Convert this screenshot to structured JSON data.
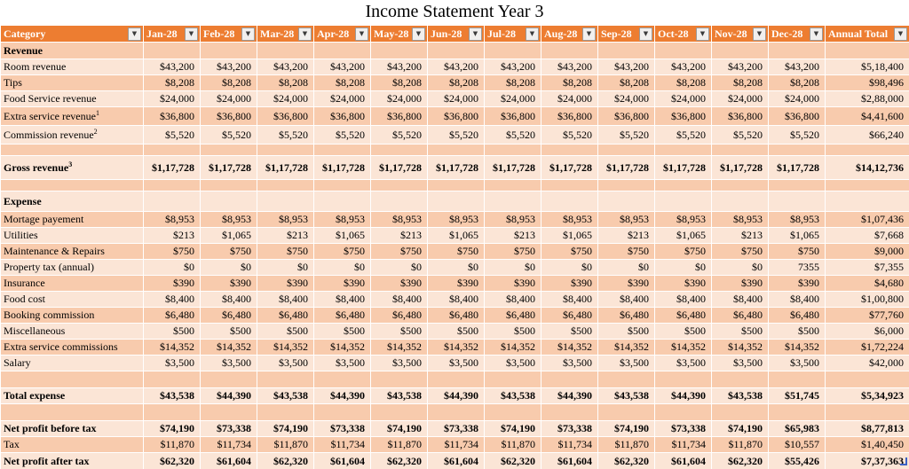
{
  "title": "Income Statement Year 3",
  "filter_icon": "▼",
  "colors": {
    "header_bg": "#ED7D31",
    "header_text": "#FFFFFF",
    "band_dark": "#F8CBAD",
    "band_light": "#FBE5D6",
    "gridline": "#FFFFFF",
    "resize_handle": "#3B62C4"
  },
  "columns": [
    "Category",
    "Jan-28",
    "Feb-28",
    "Mar-28",
    "Apr-28",
    "May-28",
    "Jun-28",
    "Jul-28",
    "Aug-28",
    "Sep-28",
    "Oct-28",
    "Nov-28",
    "Dec-28",
    "Annual Total"
  ],
  "rows": [
    {
      "label": "Revenue",
      "sup": "",
      "bold": true,
      "values": [
        "",
        "",
        "",
        "",
        "",
        "",
        "",
        "",
        "",
        "",
        "",
        "",
        ""
      ]
    },
    {
      "label": "Room revenue",
      "sup": "",
      "bold": false,
      "values": [
        "$43,200",
        "$43,200",
        "$43,200",
        "$43,200",
        "$43,200",
        "$43,200",
        "$43,200",
        "$43,200",
        "$43,200",
        "$43,200",
        "$43,200",
        "$43,200",
        "$5,18,400"
      ]
    },
    {
      "label": "Tips",
      "sup": "",
      "bold": false,
      "values": [
        "$8,208",
        "$8,208",
        "$8,208",
        "$8,208",
        "$8,208",
        "$8,208",
        "$8,208",
        "$8,208",
        "$8,208",
        "$8,208",
        "$8,208",
        "$8,208",
        "$98,496"
      ]
    },
    {
      "label": "Food Service revenue",
      "sup": "",
      "bold": false,
      "values": [
        "$24,000",
        "$24,000",
        "$24,000",
        "$24,000",
        "$24,000",
        "$24,000",
        "$24,000",
        "$24,000",
        "$24,000",
        "$24,000",
        "$24,000",
        "$24,000",
        "$2,88,000"
      ]
    },
    {
      "label": "Extra service revenue",
      "sup": "1",
      "bold": false,
      "values": [
        "$36,800",
        "$36,800",
        "$36,800",
        "$36,800",
        "$36,800",
        "$36,800",
        "$36,800",
        "$36,800",
        "$36,800",
        "$36,800",
        "$36,800",
        "$36,800",
        "$4,41,600"
      ]
    },
    {
      "label": "Commission revenue",
      "sup": "2",
      "bold": false,
      "values": [
        "$5,520",
        "$5,520",
        "$5,520",
        "$5,520",
        "$5,520",
        "$5,520",
        "$5,520",
        "$5,520",
        "$5,520",
        "$5,520",
        "$5,520",
        "$5,520",
        "$66,240"
      ]
    },
    {
      "label": "",
      "sup": "",
      "bold": false,
      "values": [
        "",
        "",
        "",
        "",
        "",
        "",
        "",
        "",
        "",
        "",
        "",
        "",
        ""
      ]
    },
    {
      "label": "Gross revenue",
      "sup": "3",
      "bold": true,
      "values": [
        "$1,17,728",
        "$1,17,728",
        "$1,17,728",
        "$1,17,728",
        "$1,17,728",
        "$1,17,728",
        "$1,17,728",
        "$1,17,728",
        "$1,17,728",
        "$1,17,728",
        "$1,17,728",
        "$1,17,728",
        "$14,12,736"
      ]
    },
    {
      "label": "",
      "sup": "",
      "bold": false,
      "values": [
        "",
        "",
        "",
        "",
        "",
        "",
        "",
        "",
        "",
        "",
        "",
        "",
        ""
      ]
    },
    {
      "label": "Expense",
      "sup": "",
      "bold": true,
      "values": [
        "",
        "",
        "",
        "",
        "",
        "",
        "",
        "",
        "",
        "",
        "",
        "",
        ""
      ]
    },
    {
      "label": "Mortage payement",
      "sup": "",
      "bold": false,
      "values": [
        "$8,953",
        "$8,953",
        "$8,953",
        "$8,953",
        "$8,953",
        "$8,953",
        "$8,953",
        "$8,953",
        "$8,953",
        "$8,953",
        "$8,953",
        "$8,953",
        "$1,07,436"
      ]
    },
    {
      "label": "Utilities",
      "sup": "",
      "bold": false,
      "values": [
        "$213",
        "$1,065",
        "$213",
        "$1,065",
        "$213",
        "$1,065",
        "$213",
        "$1,065",
        "$213",
        "$1,065",
        "$213",
        "$1,065",
        "$7,668"
      ]
    },
    {
      "label": "Maintenance & Repairs",
      "sup": "",
      "bold": false,
      "values": [
        "$750",
        "$750",
        "$750",
        "$750",
        "$750",
        "$750",
        "$750",
        "$750",
        "$750",
        "$750",
        "$750",
        "$750",
        "$9,000"
      ]
    },
    {
      "label": "Property tax (annual)",
      "sup": "",
      "bold": false,
      "values": [
        "$0",
        "$0",
        "$0",
        "$0",
        "$0",
        "$0",
        "$0",
        "$0",
        "$0",
        "$0",
        "$0",
        "7355",
        "$7,355"
      ]
    },
    {
      "label": "Insurance",
      "sup": "",
      "bold": false,
      "values": [
        "$390",
        "$390",
        "$390",
        "$390",
        "$390",
        "$390",
        "$390",
        "$390",
        "$390",
        "$390",
        "$390",
        "$390",
        "$4,680"
      ]
    },
    {
      "label": "Food cost",
      "sup": "",
      "bold": false,
      "values": [
        "$8,400",
        "$8,400",
        "$8,400",
        "$8,400",
        "$8,400",
        "$8,400",
        "$8,400",
        "$8,400",
        "$8,400",
        "$8,400",
        "$8,400",
        "$8,400",
        "$1,00,800"
      ]
    },
    {
      "label": "Booking commission",
      "sup": "",
      "bold": false,
      "values": [
        "$6,480",
        "$6,480",
        "$6,480",
        "$6,480",
        "$6,480",
        "$6,480",
        "$6,480",
        "$6,480",
        "$6,480",
        "$6,480",
        "$6,480",
        "$6,480",
        "$77,760"
      ]
    },
    {
      "label": "Miscellaneous",
      "sup": "",
      "bold": false,
      "values": [
        "$500",
        "$500",
        "$500",
        "$500",
        "$500",
        "$500",
        "$500",
        "$500",
        "$500",
        "$500",
        "$500",
        "$500",
        "$6,000"
      ]
    },
    {
      "label": "Extra service commissions",
      "sup": "",
      "bold": false,
      "values": [
        "$14,352",
        "$14,352",
        "$14,352",
        "$14,352",
        "$14,352",
        "$14,352",
        "$14,352",
        "$14,352",
        "$14,352",
        "$14,352",
        "$14,352",
        "$14,352",
        "$1,72,224"
      ]
    },
    {
      "label": "Salary",
      "sup": "",
      "bold": false,
      "values": [
        "$3,500",
        "$3,500",
        "$3,500",
        "$3,500",
        "$3,500",
        "$3,500",
        "$3,500",
        "$3,500",
        "$3,500",
        "$3,500",
        "$3,500",
        "$3,500",
        "$42,000"
      ]
    },
    {
      "label": "",
      "sup": "",
      "bold": false,
      "values": [
        "",
        "",
        "",
        "",
        "",
        "",
        "",
        "",
        "",
        "",
        "",
        "",
        ""
      ]
    },
    {
      "label": "Total expense",
      "sup": "",
      "bold": true,
      "values": [
        "$43,538",
        "$44,390",
        "$43,538",
        "$44,390",
        "$43,538",
        "$44,390",
        "$43,538",
        "$44,390",
        "$43,538",
        "$44,390",
        "$43,538",
        "$51,745",
        "$5,34,923"
      ]
    },
    {
      "label": "",
      "sup": "",
      "bold": false,
      "values": [
        "",
        "",
        "",
        "",
        "",
        "",
        "",
        "",
        "",
        "",
        "",
        "",
        ""
      ]
    },
    {
      "label": "Net profit before tax",
      "sup": "",
      "bold": true,
      "values": [
        "$74,190",
        "$73,338",
        "$74,190",
        "$73,338",
        "$74,190",
        "$73,338",
        "$74,190",
        "$73,338",
        "$74,190",
        "$73,338",
        "$74,190",
        "$65,983",
        "$8,77,813"
      ]
    },
    {
      "label": "Tax",
      "sup": "",
      "bold": false,
      "values": [
        "$11,870",
        "$11,734",
        "$11,870",
        "$11,734",
        "$11,870",
        "$11,734",
        "$11,870",
        "$11,734",
        "$11,870",
        "$11,734",
        "$11,870",
        "$10,557",
        "$1,40,450"
      ]
    },
    {
      "label": "Net profit after tax",
      "sup": "",
      "bold": true,
      "values": [
        "$62,320",
        "$61,604",
        "$62,320",
        "$61,604",
        "$62,320",
        "$61,604",
        "$62,320",
        "$61,604",
        "$62,320",
        "$61,604",
        "$62,320",
        "$55,426",
        "$7,37,363"
      ]
    }
  ]
}
